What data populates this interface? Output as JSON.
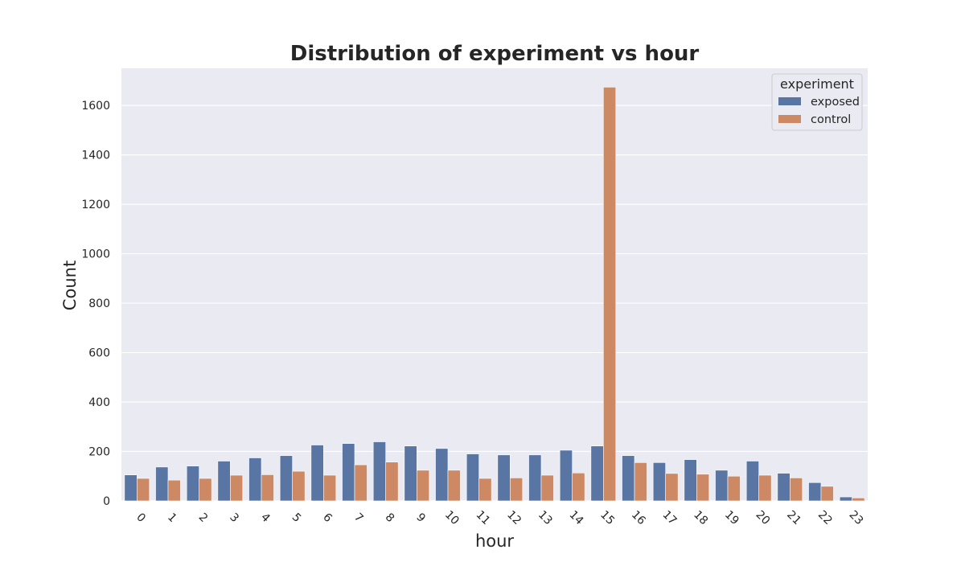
{
  "chart_data": {
    "type": "bar",
    "title": "Distribution of experiment vs hour",
    "xlabel": "hour",
    "ylabel": "Count",
    "categories": [
      "0",
      "1",
      "2",
      "3",
      "4",
      "5",
      "6",
      "7",
      "8",
      "9",
      "10",
      "11",
      "12",
      "13",
      "14",
      "15",
      "16",
      "17",
      "18",
      "19",
      "20",
      "21",
      "22",
      "23"
    ],
    "series": [
      {
        "name": "exposed",
        "color": "#5875a4",
        "values": [
          105,
          137,
          141,
          161,
          174,
          183,
          226,
          232,
          239,
          222,
          212,
          190,
          186,
          186,
          205,
          222,
          183,
          155,
          167,
          124,
          161,
          112,
          74,
          16
        ]
      },
      {
        "name": "control",
        "color": "#cc8963",
        "values": [
          91,
          84,
          91,
          104,
          106,
          120,
          104,
          146,
          157,
          124,
          124,
          91,
          93,
          104,
          113,
          1674,
          155,
          111,
          108,
          100,
          104,
          93,
          59,
          12
        ]
      }
    ],
    "ylim": [
      0,
      1750
    ],
    "yticks": [
      0,
      200,
      400,
      600,
      800,
      1000,
      1200,
      1400,
      1600
    ],
    "grid": true,
    "background_color": "#eaeaf2",
    "legend": {
      "title": "experiment",
      "placement": "top-right"
    }
  }
}
